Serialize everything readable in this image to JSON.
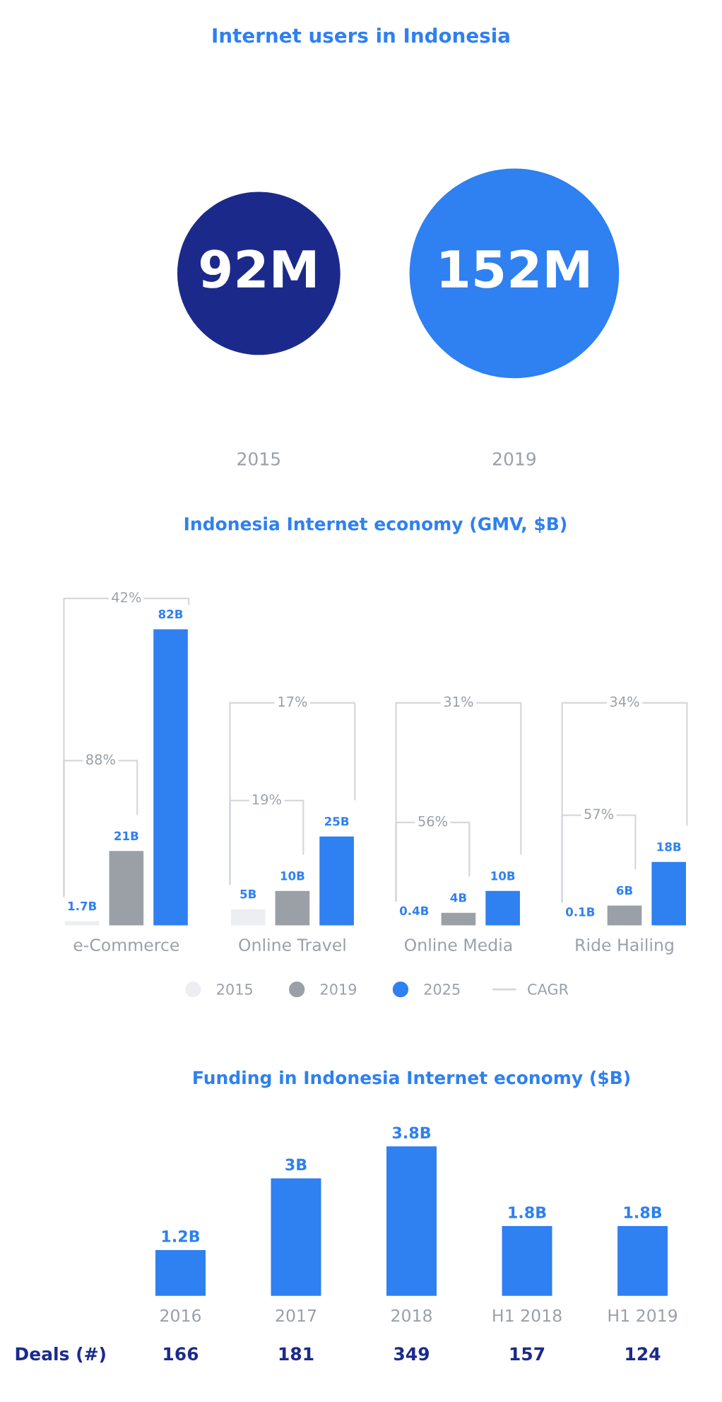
{
  "chart_data": [
    {
      "type": "other",
      "title": "Internet users in Indonesia",
      "categories": [
        "2015",
        "2019"
      ],
      "values": [
        92,
        152
      ],
      "value_labels": [
        "92M",
        "152M"
      ],
      "colors": [
        "#1b2a8a",
        "#2f80f0"
      ]
    },
    {
      "type": "bar",
      "title": "Indonesia Internet economy (GMV, $B)",
      "categories": [
        "e-Commerce",
        "Online Travel",
        "Online Media",
        "Ride Hailing"
      ],
      "series": [
        {
          "name": "2015",
          "color": "#eceef2",
          "values": [
            1.7,
            5,
            0.4,
            0.1
          ],
          "value_labels": [
            "1.7B",
            "5B",
            "0.4B",
            "0.1B"
          ]
        },
        {
          "name": "2019",
          "color": "#9aa0a6",
          "values": [
            21,
            10,
            4,
            6
          ],
          "value_labels": [
            "21B",
            "10B",
            "4B",
            "6B"
          ]
        },
        {
          "name": "2025",
          "color": "#2f80f0",
          "values": [
            82,
            25,
            10,
            18
          ],
          "value_labels": [
            "82B",
            "25B",
            "10B",
            "18B"
          ]
        }
      ],
      "annotations": [
        "42%",
        "88%",
        "17%",
        "19%",
        "31%",
        "56%",
        "34%",
        "57%",
        "CAGR"
      ],
      "legend": "bottom"
    },
    {
      "type": "bar",
      "title": "Funding in Indonesia Internet economy ($B)",
      "categories": [
        "2016",
        "2017",
        "2018",
        "H1 2018",
        "H1 2019"
      ],
      "values": [
        1.2,
        3,
        3.8,
        1.8,
        1.8
      ],
      "color": "#2f80f0",
      "value_labels": [
        "1.2B",
        "3B",
        "3.8B",
        "1.8B",
        "1.8B"
      ],
      "annotations": [
        "Deals (#)",
        "166",
        "181",
        "349",
        "157",
        "124"
      ]
    }
  ]
}
